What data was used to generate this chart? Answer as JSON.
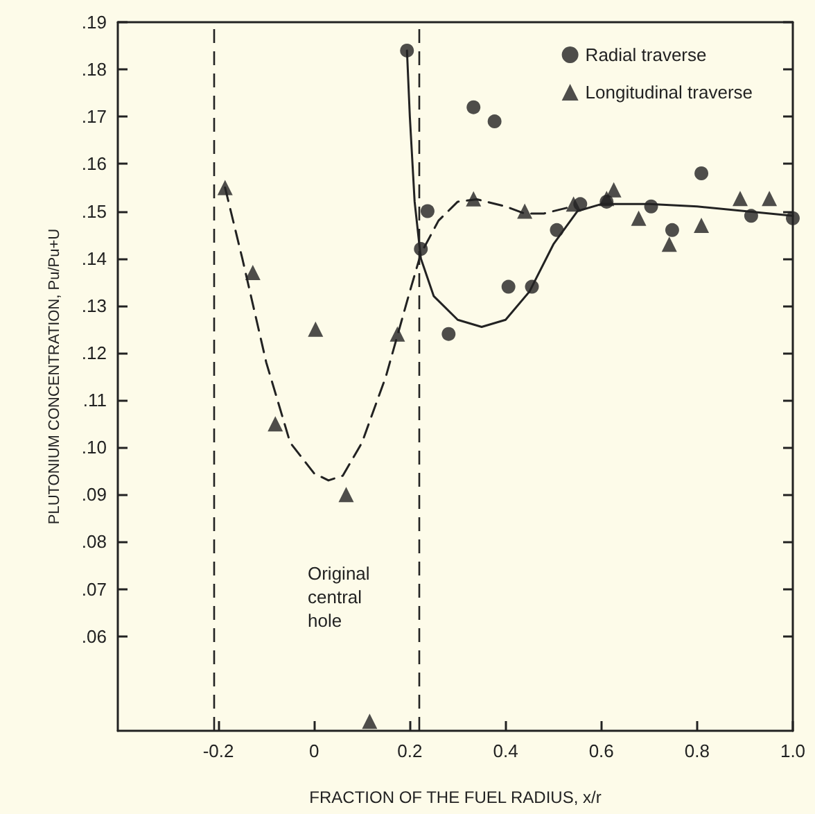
{
  "chart_data": {
    "type": "scatter",
    "xlabel": "FRACTION OF THE FUEL RADIUS, x/r",
    "ylabel": "PLUTONIUM CONCENTRATION, Pu/Pu+U",
    "xlim": [
      -0.41,
      1.0
    ],
    "xticks": [
      -0.2,
      0,
      0.2,
      0.4,
      0.6,
      0.8,
      {
        "value": 1,
        "label": "1.0"
      }
    ],
    "ylim": [
      0.04,
      0.19
    ],
    "yticks": [
      {
        "value": 0.06,
        "label": ".06"
      },
      {
        "value": 0.07,
        "label": ".07"
      },
      {
        "value": 0.08,
        "label": ".08"
      },
      {
        "value": 0.09,
        "label": ".09"
      },
      {
        "value": 0.1,
        "label": ".10"
      },
      {
        "value": 0.11,
        "label": ".11"
      },
      {
        "value": 0.12,
        "label": ".12"
      },
      {
        "value": 0.13,
        "label": ".13"
      },
      {
        "value": 0.14,
        "label": ".14"
      },
      {
        "value": 0.15,
        "label": ".15"
      },
      {
        "value": 0.16,
        "label": ".16"
      },
      {
        "value": 0.17,
        "label": ".17"
      },
      {
        "value": 0.18,
        "label": ".18"
      },
      {
        "value": 0.19,
        "label": ".19"
      }
    ],
    "grid": false,
    "legend": "top right",
    "series": [
      {
        "name": "Radial traverse",
        "color": "#222222",
        "marker": "circle",
        "x": [
          0.194,
          0.223,
          0.237,
          0.281,
          0.333,
          0.377,
          0.406,
          0.455,
          0.507,
          0.556,
          0.611,
          0.704,
          0.748,
          0.809,
          0.913,
          1.0
        ],
        "values": [
          0.184,
          0.142,
          0.15,
          0.124,
          0.172,
          0.169,
          0.134,
          0.134,
          0.146,
          0.1515,
          0.152,
          0.151,
          0.146,
          0.158,
          0.149,
          0.1485
        ]
      },
      {
        "type": "line",
        "color": "#222222",
        "marker": "none",
        "line_style": "solid",
        "x": [
          0.194,
          0.2,
          0.21,
          0.223,
          0.25,
          0.3,
          0.35,
          0.4,
          0.45,
          0.5,
          0.55,
          0.6,
          0.7,
          0.8,
          0.9,
          1.0
        ],
        "values": [
          0.184,
          0.17,
          0.152,
          0.14,
          0.132,
          0.127,
          0.1255,
          0.127,
          0.133,
          0.143,
          0.15,
          0.1515,
          0.1515,
          0.151,
          0.15,
          0.149
        ]
      },
      {
        "name": "Longitudinal traverse",
        "color": "#222222",
        "marker": "triangle",
        "x": [
          -0.186,
          -0.128,
          -0.081,
          0.003,
          0.067,
          0.116,
          0.174,
          0.333,
          0.44,
          0.542,
          0.611,
          0.626,
          0.678,
          0.742,
          0.809,
          0.89,
          0.951
        ],
        "values": [
          0.155,
          0.137,
          0.105,
          0.125,
          0.09,
          0.042,
          0.124,
          0.1526,
          0.15,
          0.1515,
          0.1527,
          0.1545,
          0.1485,
          0.143,
          0.147,
          0.1527,
          0.1527
        ]
      },
      {
        "type": "line",
        "color": "#222222",
        "marker": "none",
        "line_style": "dashed",
        "x": [
          -0.186,
          -0.15,
          -0.1,
          -0.05,
          0,
          0.03,
          0.06,
          0.1,
          0.15,
          0.2,
          0.223,
          0.26,
          0.3,
          0.34,
          0.4,
          0.44,
          0.48,
          0.54
        ],
        "values": [
          0.155,
          0.14,
          0.118,
          0.101,
          0.0945,
          0.093,
          0.094,
          0.101,
          0.115,
          0.133,
          0.141,
          0.148,
          0.152,
          0.1525,
          0.151,
          0.1495,
          0.1495,
          0.151
        ]
      }
    ],
    "ref_lines": [
      {
        "axis": "x",
        "value": -0.212,
        "line_style": "dashed"
      },
      {
        "axis": "x",
        "value": 0.22,
        "line_style": "dashed"
      }
    ],
    "annotations": [
      "Original central hole"
    ]
  }
}
